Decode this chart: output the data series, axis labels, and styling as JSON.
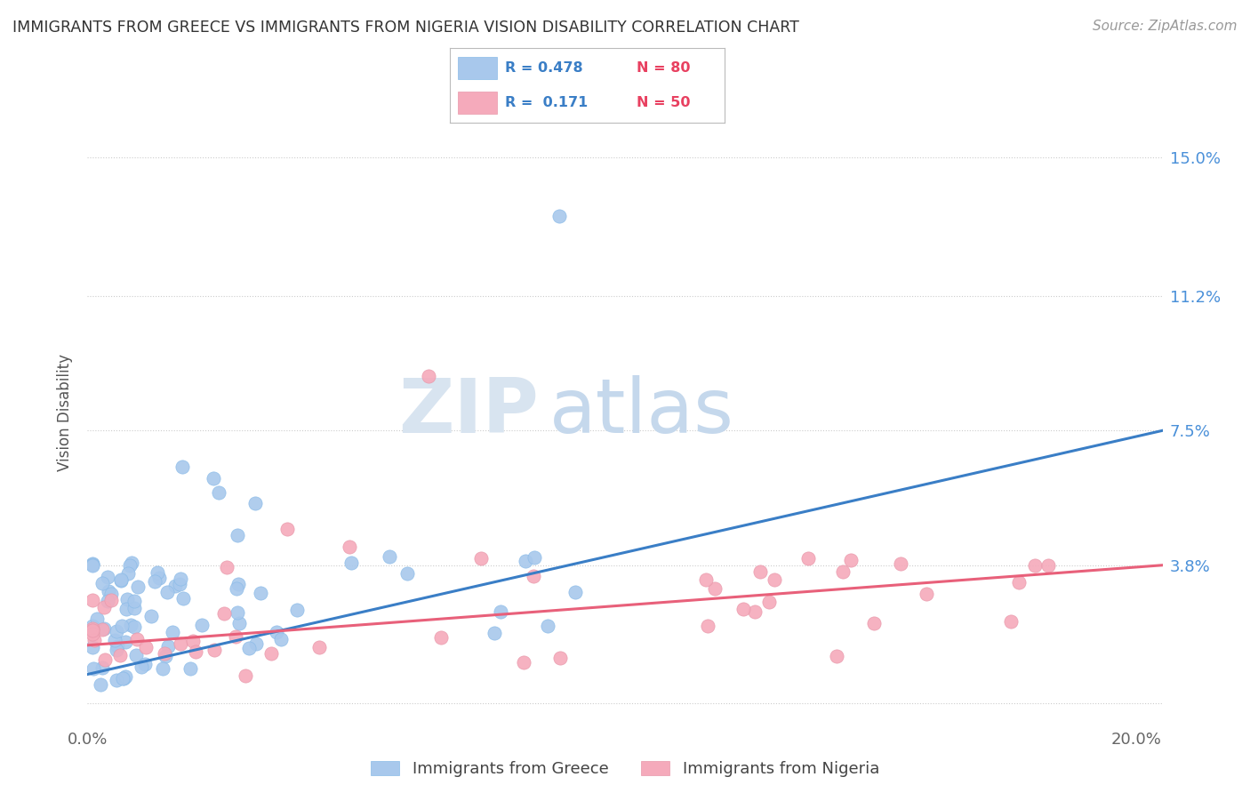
{
  "title": "IMMIGRANTS FROM GREECE VS IMMIGRANTS FROM NIGERIA VISION DISABILITY CORRELATION CHART",
  "source": "Source: ZipAtlas.com",
  "ylabel": "Vision Disability",
  "yticks": [
    0.0,
    0.038,
    0.075,
    0.112,
    0.15
  ],
  "ytick_labels": [
    "",
    "3.8%",
    "7.5%",
    "11.2%",
    "15.0%"
  ],
  "xlim": [
    0.0,
    0.205
  ],
  "ylim": [
    -0.005,
    0.165
  ],
  "greece_R": 0.478,
  "greece_N": 80,
  "nigeria_R": 0.171,
  "nigeria_N": 50,
  "greece_color": "#A8C8EC",
  "nigeria_color": "#F5AABB",
  "greece_line_color": "#3A7EC6",
  "nigeria_line_color": "#E8607A",
  "legend_label_greece": "Immigrants from Greece",
  "legend_label_nigeria": "Immigrants from Nigeria",
  "watermark_zip": "ZIP",
  "watermark_atlas": "atlas",
  "greece_line_y0": 0.008,
  "greece_line_y1": 0.075,
  "nigeria_line_y0": 0.016,
  "nigeria_line_y1": 0.038
}
